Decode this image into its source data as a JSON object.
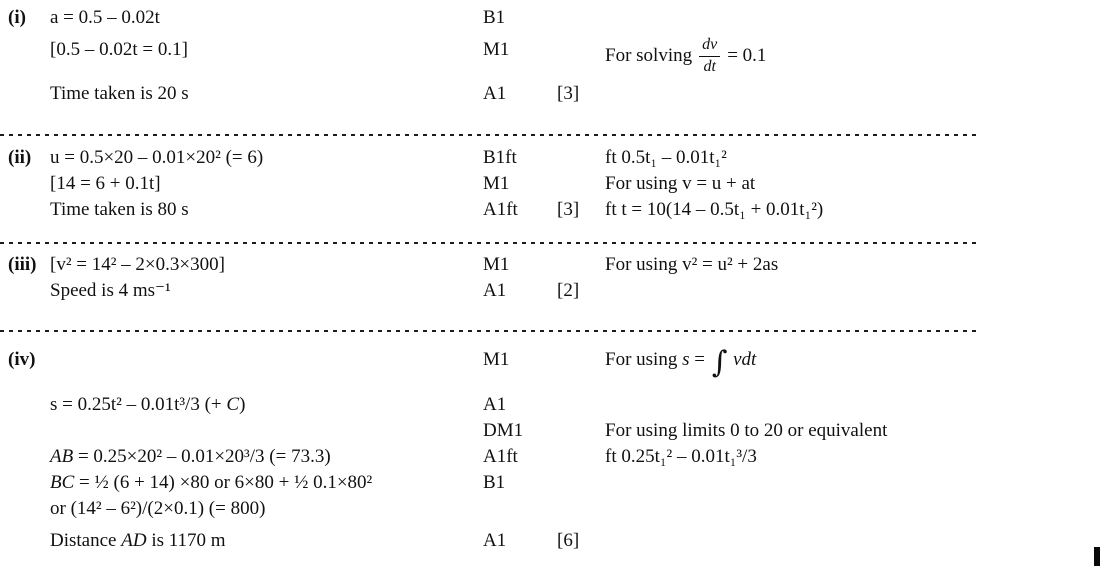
{
  "page": {
    "background_color": "#ffffff",
    "text_color": "#111111"
  },
  "sections": [
    {
      "label": "(i)",
      "rows": [
        {
          "working": "a = 0.5 – 0.02t",
          "mark": "B1"
        },
        {
          "working": "[0.5 – 0.02t = 0.1]",
          "mark": "M1",
          "comment_pre": "For solving",
          "frac_num": "dv",
          "frac_den": "dt",
          "comment_post": "= 0.1"
        },
        {
          "working": "Time taken is 20 s",
          "mark": "A1",
          "total": "[3]"
        }
      ]
    },
    {
      "label": "(ii)",
      "rows": [
        {
          "working": "u = 0.5×20 – 0.01×20² (= 6)",
          "mark": "B1ft",
          "comment": "ft 0.5t₁ – 0.01t₁²"
        },
        {
          "working": "[14 = 6 + 0.1t]",
          "mark": "M1",
          "comment": "For using v = u + at"
        },
        {
          "working": "Time taken is 80 s",
          "mark": "A1ft",
          "total": "[3]",
          "comment": "ft t = 10(14 – 0.5t₁ + 0.01t₁²)"
        }
      ]
    },
    {
      "label": "(iii)",
      "rows": [
        {
          "working": "[v² = 14² – 2×0.3×300]",
          "mark": "M1",
          "comment": "For using v² = u² + 2as"
        },
        {
          "working": "Speed is 4 ms⁻¹",
          "mark": "A1",
          "total": "[2]"
        }
      ]
    },
    {
      "label": "(iv)",
      "rows": [
        {
          "mark": "M1",
          "comment_pre": "For using ",
          "comment_it1": "s",
          "comment_eq": " = ",
          "integral": "∫",
          "comment_it2": "vdt"
        },
        {
          "pre": "s = 0.25t² – 0.01t³/3 (+ ",
          "it": "C",
          "rest": ")",
          "mark": "A1"
        },
        {
          "mark": "DM1",
          "comment": "For using limits 0 to 20 or equivalent"
        },
        {
          "it": "AB",
          "rest": " = 0.25×20² – 0.01×20³/3 (= 73.3)",
          "mark": "A1ft",
          "comment": "ft 0.25t₁² – 0.01t₁³/3"
        },
        {
          "it": "BC",
          "rest": " = ½ (6 + 14) ×80 or 6×80 + ½ 0.1×80²",
          "mark": "B1"
        },
        {
          "working": "or (14² – 6²)/(2×0.1) (= 800)"
        },
        {
          "pre": "Distance ",
          "it": "AD",
          "rest": " is 1170 m",
          "mark": "A1",
          "total": "[6]"
        }
      ]
    }
  ]
}
